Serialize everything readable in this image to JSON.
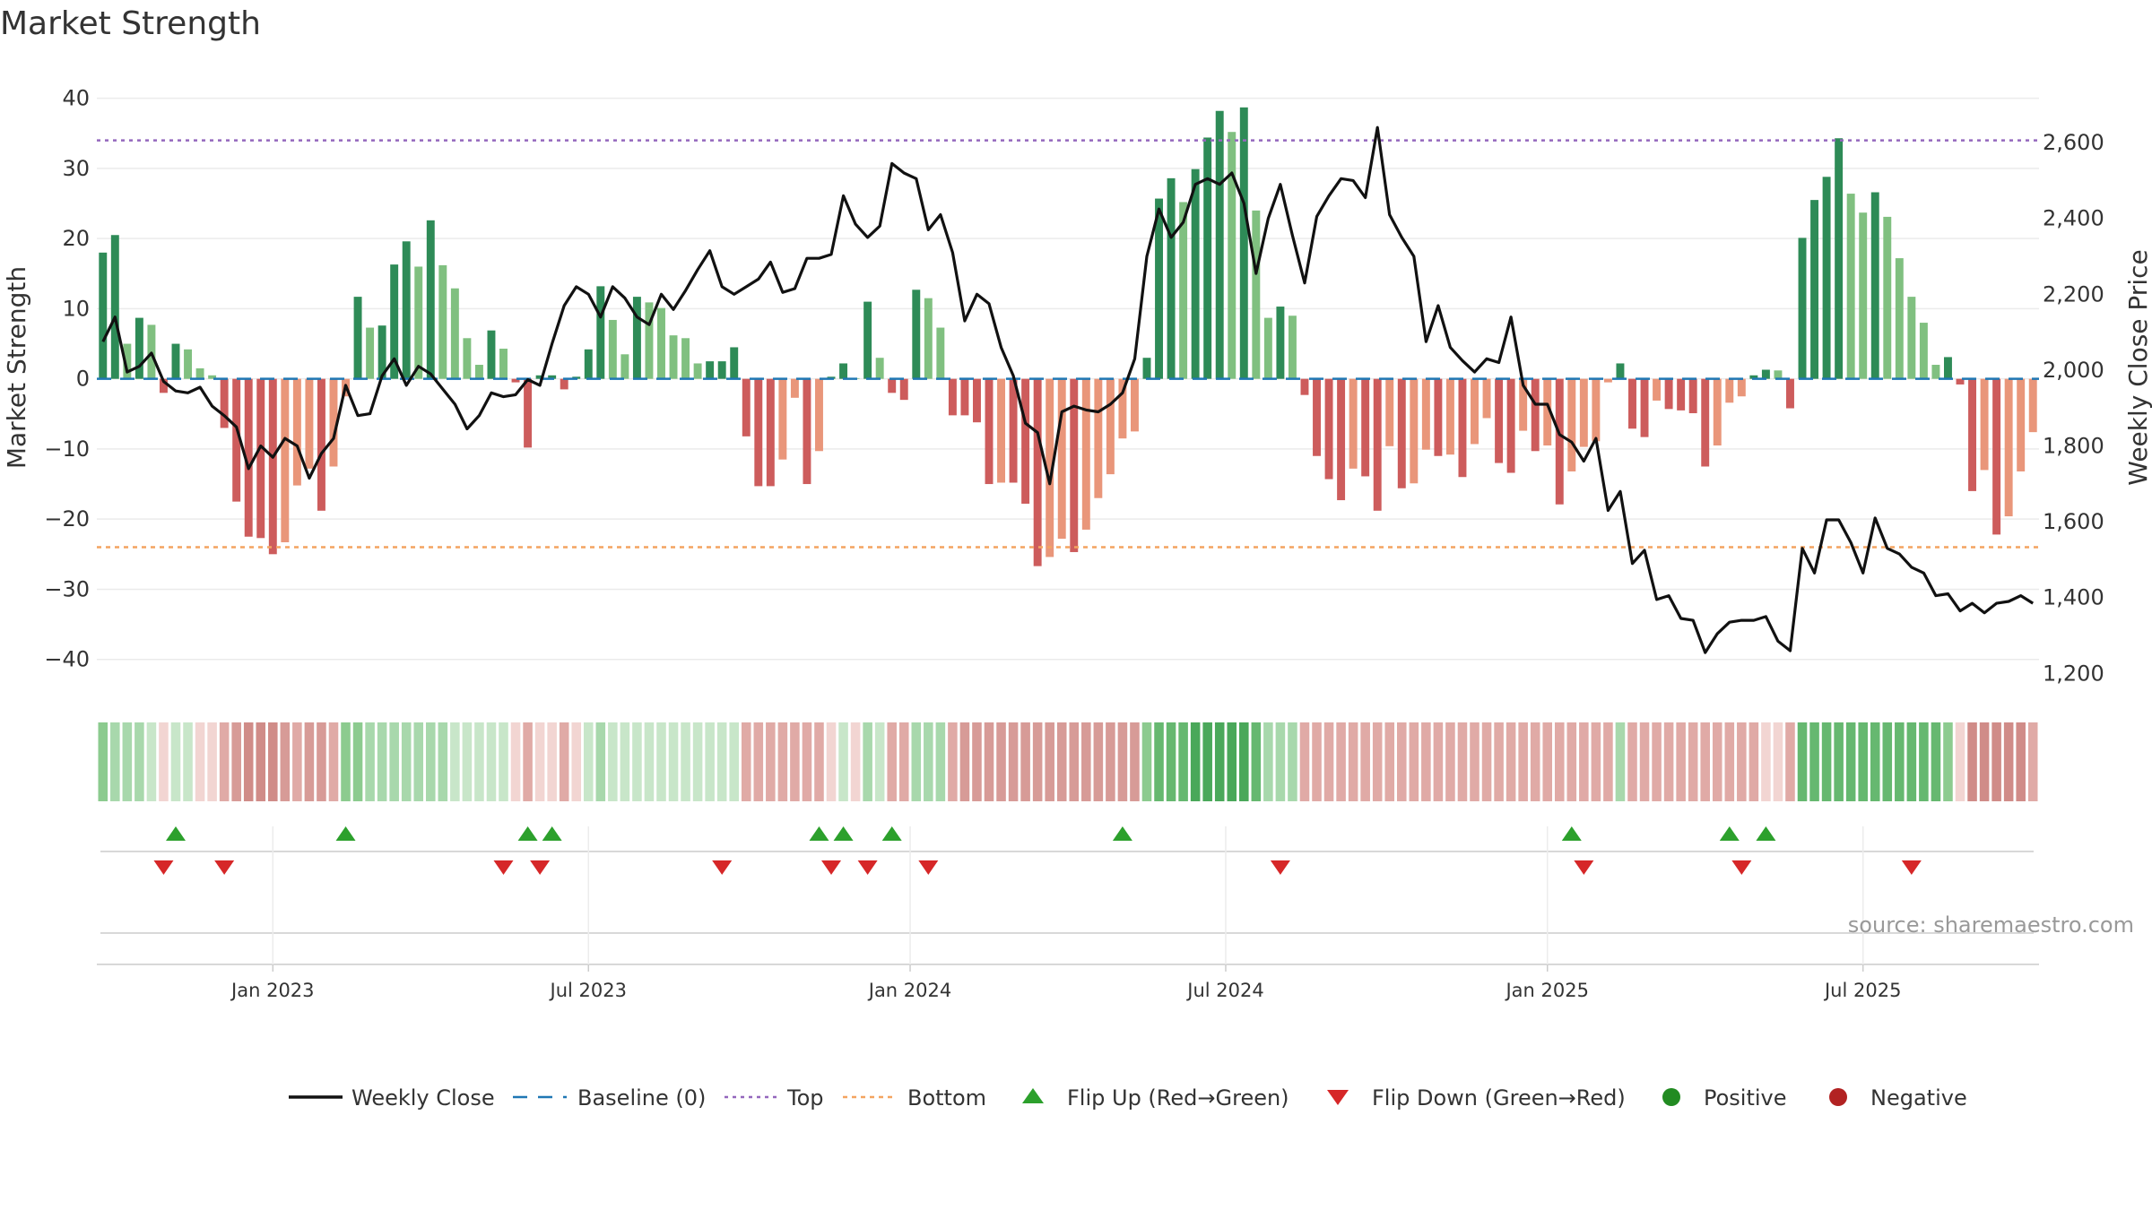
{
  "title": "Market Strength",
  "source": "source: sharemaestro.com",
  "colors": {
    "pos_dark": "#2e8b57",
    "pos_light": "#80c080",
    "neg_dark": "#cd5c5c",
    "neg_light": "#e9967a",
    "close_line": "#111111",
    "baseline": "#1f77b4",
    "top": "#9467bd",
    "bottom": "#f4a460",
    "flip_up": "#2ca02c",
    "flip_down": "#d62728",
    "positive": "#228b22",
    "negative": "#b22222"
  },
  "legend": [
    {
      "key": "close",
      "label": "Weekly Close"
    },
    {
      "key": "baseline",
      "label": "Baseline (0)"
    },
    {
      "key": "top",
      "label": "Top"
    },
    {
      "key": "bottom",
      "label": "Bottom"
    },
    {
      "key": "flip_up",
      "label": "Flip Up (Red→Green)"
    },
    {
      "key": "flip_down",
      "label": "Flip Down (Green→Red)"
    },
    {
      "key": "positive",
      "label": "Positive"
    },
    {
      "key": "negative",
      "label": "Negative"
    }
  ],
  "chart_data": {
    "type": "bar",
    "title": "Market Strength",
    "ylabel": "Market Strength",
    "y2label": "Weekly Close Price",
    "ylim": [
      -44,
      42
    ],
    "y2lim": [
      1163,
      2754
    ],
    "yticks": [
      -40,
      -30,
      -20,
      -10,
      0,
      10,
      20,
      30,
      40
    ],
    "y2ticks": [
      1200,
      1400,
      1600,
      1800,
      2000,
      2200,
      2400,
      2600
    ],
    "ytick_labels": [
      "−40",
      "−30",
      "−20",
      "−10",
      "0",
      "10",
      "20",
      "30",
      "40"
    ],
    "y2tick_labels": [
      "1,200",
      "1,400",
      "1,600",
      "1,800",
      "2,000",
      "2,200",
      "2,400",
      "2,600"
    ],
    "xticks": [
      {
        "label": "Jan 2023",
        "week": 14
      },
      {
        "label": "Jul 2023",
        "week": 40
      },
      {
        "label": "Jan 2024",
        "week": 66.5
      },
      {
        "label": "Jul 2024",
        "week": 92.5
      },
      {
        "label": "Jan 2025",
        "week": 119
      },
      {
        "label": "Jul 2025",
        "week": 145
      }
    ],
    "top_level": 34,
    "bottom_level": -24,
    "baseline": 0,
    "strength": [
      18,
      20.5,
      5,
      8.7,
      7.7,
      -2,
      5,
      4.2,
      1.5,
      0.5,
      -7,
      -17.5,
      -22.5,
      -22.7,
      -25,
      -23.3,
      -15.2,
      -12.8,
      -18.8,
      -12.5,
      -2.5,
      11.7,
      7.3,
      7.6,
      16.3,
      19.6,
      16,
      22.6,
      16.2,
      12.9,
      5.8,
      2,
      6.9,
      4.3,
      -0.5,
      -9.8,
      0.5,
      0.5,
      -1.5,
      0.3,
      4.2,
      13.2,
      8.4,
      3.5,
      11.7,
      10.9,
      10.1,
      6.2,
      5.8,
      2.2,
      2.5,
      2.5,
      4.5,
      -8.2,
      -15.3,
      -15.3,
      -11.5,
      -2.7,
      -15,
      -10.3,
      0.3,
      2.2,
      0.1,
      11,
      3,
      -2,
      -3,
      12.7,
      11.5,
      7.3,
      -5.2,
      -5.2,
      -6.2,
      -15,
      -14.8,
      -14.8,
      -17.8,
      -26.7,
      -25.4,
      -22.8,
      -24.7,
      -21.5,
      -17,
      -13.6,
      -8.5,
      -7.5,
      3,
      25.7,
      28.6,
      25.2,
      29.9,
      34.4,
      38.2,
      35.2,
      38.7,
      24,
      8.7,
      10.3,
      9,
      -2.3,
      -11,
      -14.3,
      -17.3,
      -12.8,
      -13.9,
      -18.8,
      -9.6,
      -15.6,
      -14.9,
      -10.1,
      -11,
      -10.8,
      -14,
      -9.3,
      -5.6,
      -12,
      -13.4,
      -7.4,
      -10.3,
      -9.5,
      -17.9,
      -13.2,
      -9.7,
      -8.9,
      -0.5,
      2.2,
      -7.1,
      -8.3,
      -3.1,
      -4.3,
      -4.5,
      -4.9,
      -12.5,
      -9.5,
      -3.4,
      -2.5,
      0.5,
      1.3,
      1.2,
      -4.2,
      20.1,
      25.5,
      28.8,
      34.3,
      26.4,
      23.7,
      26.6,
      23.1,
      17.2,
      11.7,
      8,
      2,
      3.1,
      -0.8,
      -16,
      -13,
      -22.2,
      -19.6,
      -13.2,
      -7.6
    ],
    "weekly_close": [
      2075,
      2140,
      1995,
      2010,
      2045,
      1970,
      1945,
      1940,
      1955,
      1905,
      1880,
      1850,
      1740,
      1800,
      1770,
      1820,
      1800,
      1715,
      1780,
      1820,
      1960,
      1880,
      1885,
      1985,
      2030,
      1960,
      2010,
      1990,
      1950,
      1910,
      1845,
      1880,
      1940,
      1930,
      1935,
      1975,
      1960,
      2070,
      2170,
      2220,
      2200,
      2140,
      2220,
      2190,
      2140,
      2120,
      2200,
      2160,
      2210,
      2265,
      2315,
      2220,
      2200,
      2220,
      2240,
      2285,
      2205,
      2215,
      2295,
      2295,
      2305,
      2460,
      2385,
      2350,
      2380,
      2545,
      2520,
      2505,
      2370,
      2410,
      2310,
      2130,
      2200,
      2175,
      2060,
      1985,
      1860,
      1835,
      1700,
      1890,
      1905,
      1895,
      1890,
      1910,
      1940,
      2030,
      2300,
      2425,
      2350,
      2390,
      2490,
      2505,
      2490,
      2520,
      2440,
      2255,
      2400,
      2490,
      2355,
      2230,
      2405,
      2460,
      2505,
      2500,
      2455,
      2640,
      2410,
      2350,
      2300,
      2075,
      2170,
      2060,
      2025,
      1995,
      2030,
      2020,
      2140,
      1960,
      1910,
      1910,
      1830,
      1810,
      1760,
      1820,
      1630,
      1680,
      1490,
      1525,
      1395,
      1405,
      1345,
      1340,
      1255,
      1305,
      1335,
      1340,
      1340,
      1350,
      1285,
      1260,
      1530,
      1465,
      1605,
      1605,
      1545,
      1465,
      1610,
      1530,
      1515,
      1480,
      1465,
      1405,
      1410,
      1365,
      1385,
      1360,
      1385,
      1390,
      1405,
      1385
    ],
    "regime_shade": [
      3,
      2,
      2,
      2,
      1,
      0,
      1,
      1,
      0,
      0,
      4,
      5,
      6,
      6,
      6,
      5,
      4,
      5,
      5,
      4,
      3,
      3,
      2,
      2,
      2,
      2,
      2,
      2,
      2,
      1,
      1,
      1,
      1,
      1,
      0,
      4,
      0,
      0,
      4,
      0,
      1,
      2,
      1,
      1,
      1,
      1,
      1,
      1,
      1,
      1,
      1,
      1,
      1,
      4,
      4,
      4,
      4,
      4,
      4,
      4,
      0,
      1,
      0,
      2,
      1,
      4,
      4,
      2,
      2,
      2,
      4,
      5,
      5,
      5,
      5,
      5,
      5,
      5,
      5,
      5,
      5,
      5,
      5,
      5,
      5,
      5,
      3,
      7,
      7,
      7,
      8,
      8,
      8,
      8,
      8,
      7,
      2,
      2,
      2,
      4,
      4,
      4,
      4,
      4,
      4,
      4,
      4,
      4,
      4,
      4,
      4,
      4,
      4,
      4,
      4,
      4,
      4,
      4,
      4,
      4,
      4,
      4,
      4,
      4,
      4,
      2,
      4,
      4,
      4,
      4,
      4,
      4,
      4,
      4,
      4,
      4,
      4,
      0,
      0,
      4,
      7,
      7,
      7,
      7,
      7,
      7,
      7,
      7,
      7,
      7,
      7,
      7,
      3,
      0,
      6,
      6,
      6,
      6,
      6,
      4
    ],
    "flip_up_weeks": [
      6,
      20,
      35,
      37,
      59,
      61,
      65,
      84,
      121,
      134,
      137
    ],
    "flip_down_weeks": [
      5,
      10,
      33,
      36,
      51,
      60,
      63,
      68,
      97,
      122,
      135,
      149
    ]
  }
}
